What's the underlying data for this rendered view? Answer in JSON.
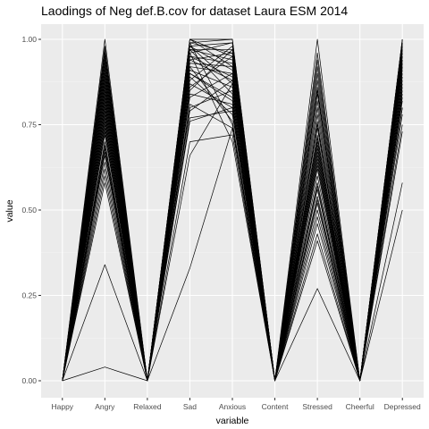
{
  "chart_data": {
    "type": "line",
    "title": "Laodings of Neg def.B.cov for dataset Laura ESM 2014",
    "xlabel": "variable",
    "ylabel": "value",
    "categories": [
      "Happy",
      "Angry",
      "Relaxed",
      "Sad",
      "Anxious",
      "Content",
      "Stressed",
      "Cheerful",
      "Depressed"
    ],
    "ylim": [
      0,
      1
    ],
    "yticks": [
      0.0,
      0.25,
      0.5,
      0.75,
      1.0
    ],
    "ytick_labels": [
      "0.00",
      "0.25",
      "0.50",
      "0.75",
      "1.00"
    ],
    "grid": true,
    "legend": "none",
    "line_color": "#000000",
    "panel_color": "#ebebeb",
    "series": [
      {
        "values": [
          0,
          0.04,
          0,
          0.33,
          0.74,
          0,
          0.27,
          0,
          0.5
        ]
      },
      {
        "values": [
          0,
          0.34,
          0,
          0.66,
          0.87,
          0,
          0.41,
          0,
          0.58
        ]
      },
      {
        "values": [
          0,
          1.0,
          0,
          1.0,
          1.0,
          0,
          1.0,
          0,
          1.0
        ]
      },
      {
        "values": [
          0,
          0.58,
          0,
          0.7,
          0.72,
          0,
          0.43,
          0,
          0.75
        ]
      },
      {
        "values": [
          0,
          0.6,
          0,
          0.76,
          0.8,
          0,
          0.46,
          0,
          0.78
        ]
      },
      {
        "values": [
          0,
          0.62,
          0,
          0.8,
          0.85,
          0,
          0.48,
          0,
          0.8
        ]
      },
      {
        "values": [
          0,
          0.64,
          0,
          0.83,
          0.9,
          0,
          0.5,
          0,
          0.82
        ]
      },
      {
        "values": [
          0,
          0.66,
          0,
          0.86,
          0.95,
          0,
          0.52,
          0,
          0.84
        ]
      },
      {
        "values": [
          0,
          0.68,
          0,
          0.88,
          0.98,
          0,
          0.54,
          0,
          0.86
        ]
      },
      {
        "values": [
          0,
          0.7,
          0,
          0.9,
          0.82,
          0,
          0.56,
          0,
          0.87
        ]
      },
      {
        "values": [
          0,
          0.72,
          0,
          0.92,
          0.76,
          0,
          0.58,
          0,
          0.88
        ]
      },
      {
        "values": [
          0,
          0.74,
          0,
          0.94,
          0.88,
          0,
          0.6,
          0,
          0.89
        ]
      },
      {
        "values": [
          0,
          0.75,
          0,
          0.95,
          0.93,
          0,
          0.62,
          0,
          0.9
        ]
      },
      {
        "values": [
          0,
          0.76,
          0,
          0.96,
          0.7,
          0,
          0.64,
          0,
          0.91
        ]
      },
      {
        "values": [
          0,
          0.78,
          0,
          0.97,
          0.84,
          0,
          0.65,
          0,
          0.92
        ]
      },
      {
        "values": [
          0,
          0.79,
          0,
          0.98,
          0.91,
          0,
          0.66,
          0,
          0.93
        ]
      },
      {
        "values": [
          0,
          0.8,
          0,
          0.99,
          0.96,
          0,
          0.68,
          0,
          0.94
        ]
      },
      {
        "values": [
          0,
          0.81,
          0,
          0.89,
          0.78,
          0,
          0.69,
          0,
          0.95
        ]
      },
      {
        "values": [
          0,
          0.82,
          0,
          0.91,
          0.86,
          0,
          0.7,
          0,
          0.96
        ]
      },
      {
        "values": [
          0,
          0.83,
          0,
          0.93,
          0.92,
          0,
          0.71,
          0,
          0.97
        ]
      },
      {
        "values": [
          0,
          0.84,
          0,
          0.85,
          0.97,
          0,
          0.72,
          0,
          0.98
        ]
      },
      {
        "values": [
          0,
          0.85,
          0,
          0.87,
          0.8,
          0,
          0.74,
          0,
          0.99
        ]
      },
      {
        "values": [
          0,
          0.86,
          0,
          0.95,
          0.89,
          0,
          0.76,
          0,
          0.96
        ]
      },
      {
        "values": [
          0,
          0.87,
          0,
          0.97,
          0.94,
          0,
          0.78,
          0,
          0.94
        ]
      },
      {
        "values": [
          0,
          0.88,
          0,
          0.99,
          0.75,
          0,
          0.8,
          0,
          0.97
        ]
      },
      {
        "values": [
          0,
          0.89,
          0,
          0.9,
          0.83,
          0,
          0.82,
          0,
          0.92
        ]
      },
      {
        "values": [
          0,
          0.9,
          0,
          0.92,
          0.9,
          0,
          0.84,
          0,
          0.95
        ]
      },
      {
        "values": [
          0,
          0.91,
          0,
          0.94,
          0.96,
          0,
          0.86,
          0,
          0.98
        ]
      },
      {
        "values": [
          0,
          0.92,
          0,
          0.96,
          0.99,
          0,
          0.88,
          0,
          0.93
        ]
      },
      {
        "values": [
          0,
          0.93,
          0,
          0.98,
          0.87,
          0,
          0.9,
          0,
          0.97
        ]
      },
      {
        "values": [
          0,
          0.94,
          0,
          1.0,
          0.92,
          0,
          0.92,
          0,
          0.99
        ]
      },
      {
        "values": [
          0,
          0.95,
          0,
          0.97,
          0.97,
          0,
          0.94,
          0,
          1.0
        ]
      },
      {
        "values": [
          0,
          0.96,
          0,
          0.99,
          1.0,
          0,
          0.96,
          0,
          0.98
        ]
      },
      {
        "values": [
          0,
          0.97,
          0,
          1.0,
          0.95,
          0,
          0.85,
          0,
          0.99
        ]
      },
      {
        "values": [
          0,
          0.98,
          0,
          0.98,
          0.99,
          0,
          0.75,
          0,
          1.0
        ]
      },
      {
        "values": [
          0,
          0.73,
          0,
          0.77,
          0.79,
          0,
          0.53,
          0,
          0.73
        ]
      },
      {
        "values": [
          0,
          0.77,
          0,
          0.84,
          0.81,
          0,
          0.57,
          0,
          0.85
        ]
      },
      {
        "values": [
          0,
          0.67,
          0,
          0.79,
          0.88,
          0,
          0.63,
          0,
          0.8
        ]
      },
      {
        "values": [
          0,
          0.69,
          0,
          0.81,
          0.74,
          0,
          0.67,
          0,
          0.83
        ]
      }
    ]
  }
}
